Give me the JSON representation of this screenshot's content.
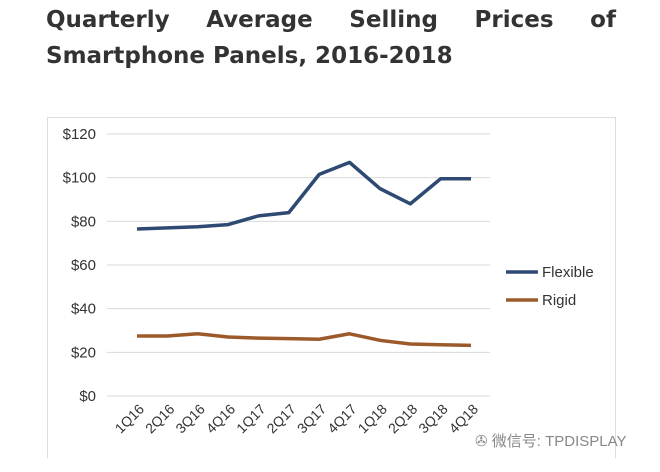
{
  "title_line1": [
    "Quarterly",
    "Average",
    "Selling",
    "Prices",
    "of"
  ],
  "title_line2": "Smartphone Panels, 2016-2018",
  "watermark": "微信号: TPDISPLAY",
  "chart_data": {
    "type": "line",
    "categories": [
      "1Q16",
      "2Q16",
      "3Q16",
      "4Q16",
      "1Q17",
      "2Q17",
      "3Q17",
      "4Q17",
      "1Q18",
      "2Q18",
      "3Q18",
      "4Q18"
    ],
    "series": [
      {
        "name": "Flexible",
        "color": "#2e4a72",
        "values": [
          76.5,
          77,
          77.5,
          78.5,
          82.5,
          84,
          101.5,
          107,
          95,
          88,
          99.5,
          99.5
        ]
      },
      {
        "name": "Rigid",
        "color": "#9c5a2a",
        "values": [
          27.5,
          27.5,
          28.5,
          27,
          26.5,
          26.3,
          26,
          28.5,
          25.5,
          23.8,
          23.5,
          23.2
        ]
      }
    ],
    "yticks": [
      "$0",
      "$20",
      "$40",
      "$60",
      "$80",
      "$100",
      "$120"
    ],
    "ylim": [
      0,
      120
    ],
    "grid": true,
    "legend": "right"
  }
}
